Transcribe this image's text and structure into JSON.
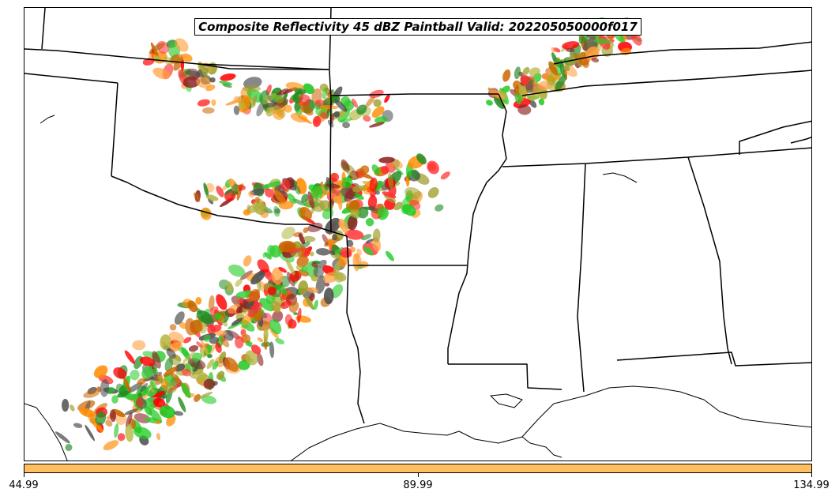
{
  "title": "Composite Reflectivity 45 dBZ Paintball Valid: 202205050000f017",
  "colorbar": {
    "color": "#ffbf5f",
    "ticks": [
      "44.99",
      "89.99",
      "134.99"
    ]
  },
  "paint_colors": [
    "#ff0000",
    "#1ec81e",
    "#ff8c00",
    "#8b2323",
    "#ffa040",
    "#228b22",
    "#a0a030",
    "#ff3030",
    "#505050",
    "#32cd32",
    "#cd6600",
    "#b4b440"
  ]
}
